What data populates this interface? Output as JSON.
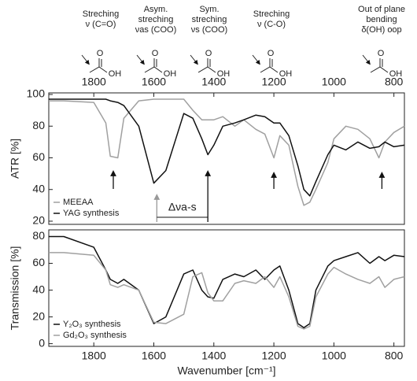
{
  "chart_data": [
    {
      "type": "line",
      "ylabel": "ATR [%]",
      "xlim": [
        1950,
        765
      ],
      "ylim": [
        18,
        101
      ],
      "xticks": [
        1800,
        1600,
        1400,
        1200,
        1000,
        800
      ],
      "yticks": [
        20,
        40,
        60,
        80,
        100
      ],
      "xtick_side": "top",
      "legend": "lower left",
      "x": [
        1950,
        1900,
        1800,
        1760,
        1745,
        1720,
        1700,
        1650,
        1600,
        1560,
        1500,
        1470,
        1440,
        1420,
        1400,
        1370,
        1330,
        1300,
        1260,
        1230,
        1200,
        1180,
        1150,
        1120,
        1100,
        1080,
        1060,
        1020,
        1000,
        960,
        920,
        880,
        850,
        830,
        800,
        765
      ],
      "series": [
        {
          "name": "MEEAA",
          "color": "#a0a0a0",
          "values": [
            96,
            96,
            95,
            82,
            61,
            60,
            85,
            96,
            97,
            97,
            97,
            90,
            84,
            84,
            84,
            86,
            80,
            84,
            78,
            75,
            60,
            74,
            68,
            42,
            30,
            32,
            40,
            57,
            72,
            80,
            78,
            72,
            60,
            70,
            76,
            80
          ]
        },
        {
          "name": "YAG synthesis",
          "color": "#111111",
          "values": [
            97,
            97,
            97,
            97,
            96,
            95,
            93,
            80,
            44,
            52,
            88,
            85,
            72,
            62,
            68,
            80,
            82,
            84,
            87,
            86,
            82,
            82,
            74,
            55,
            40,
            36,
            45,
            62,
            68,
            65,
            70,
            66,
            67,
            70,
            67,
            68
          ]
        }
      ],
      "delta_label": "Δνa-s",
      "annotations": [
        {
          "lines": [
            "Streching",
            "ν (C=O)"
          ]
        },
        {
          "lines": [
            "Asym.",
            "streching",
            "νas (COO)"
          ]
        },
        {
          "lines": [
            "Sym.",
            "streching",
            "νs (COO)"
          ]
        },
        {
          "lines": [
            "Streching",
            "ν (C-O)"
          ]
        },
        {
          "lines": [
            "Out of plane",
            "bending",
            "δ(OH) oop"
          ]
        }
      ],
      "atoms": {
        "o": "O",
        "oh": "OH"
      }
    },
    {
      "type": "line",
      "ylabel": "Transmission [%]",
      "xlabel": "Wavenumber [cm⁻¹]",
      "xlim": [
        1950,
        765
      ],
      "ylim": [
        -2,
        85
      ],
      "xticks": [
        1800,
        1600,
        1400,
        1200,
        1000,
        800
      ],
      "yticks": [
        0,
        20,
        40,
        60,
        80
      ],
      "xtick_side": "bottom",
      "legend": "lower left",
      "x": [
        1950,
        1900,
        1800,
        1760,
        1745,
        1720,
        1700,
        1650,
        1600,
        1560,
        1500,
        1470,
        1440,
        1420,
        1400,
        1370,
        1330,
        1300,
        1260,
        1230,
        1200,
        1180,
        1150,
        1120,
        1100,
        1080,
        1060,
        1020,
        1000,
        960,
        920,
        880,
        850,
        830,
        800,
        765
      ],
      "series": [
        {
          "name": "Y₂O₃ synthesis",
          "color": "#111111",
          "values": [
            80,
            80,
            72,
            55,
            48,
            45,
            48,
            40,
            15,
            20,
            52,
            55,
            40,
            35,
            34,
            48,
            52,
            50,
            55,
            48,
            55,
            58,
            40,
            15,
            12,
            15,
            40,
            58,
            62,
            65,
            68,
            60,
            65,
            62,
            66,
            65
          ]
        },
        {
          "name": "Gd₂O₃ synthesis",
          "color": "#a0a0a0",
          "values": [
            68,
            68,
            66,
            55,
            44,
            42,
            44,
            40,
            16,
            15,
            22,
            50,
            53,
            38,
            32,
            32,
            45,
            47,
            45,
            50,
            42,
            50,
            35,
            13,
            11,
            13,
            35,
            52,
            57,
            52,
            48,
            45,
            50,
            42,
            48,
            50
          ]
        }
      ]
    }
  ]
}
